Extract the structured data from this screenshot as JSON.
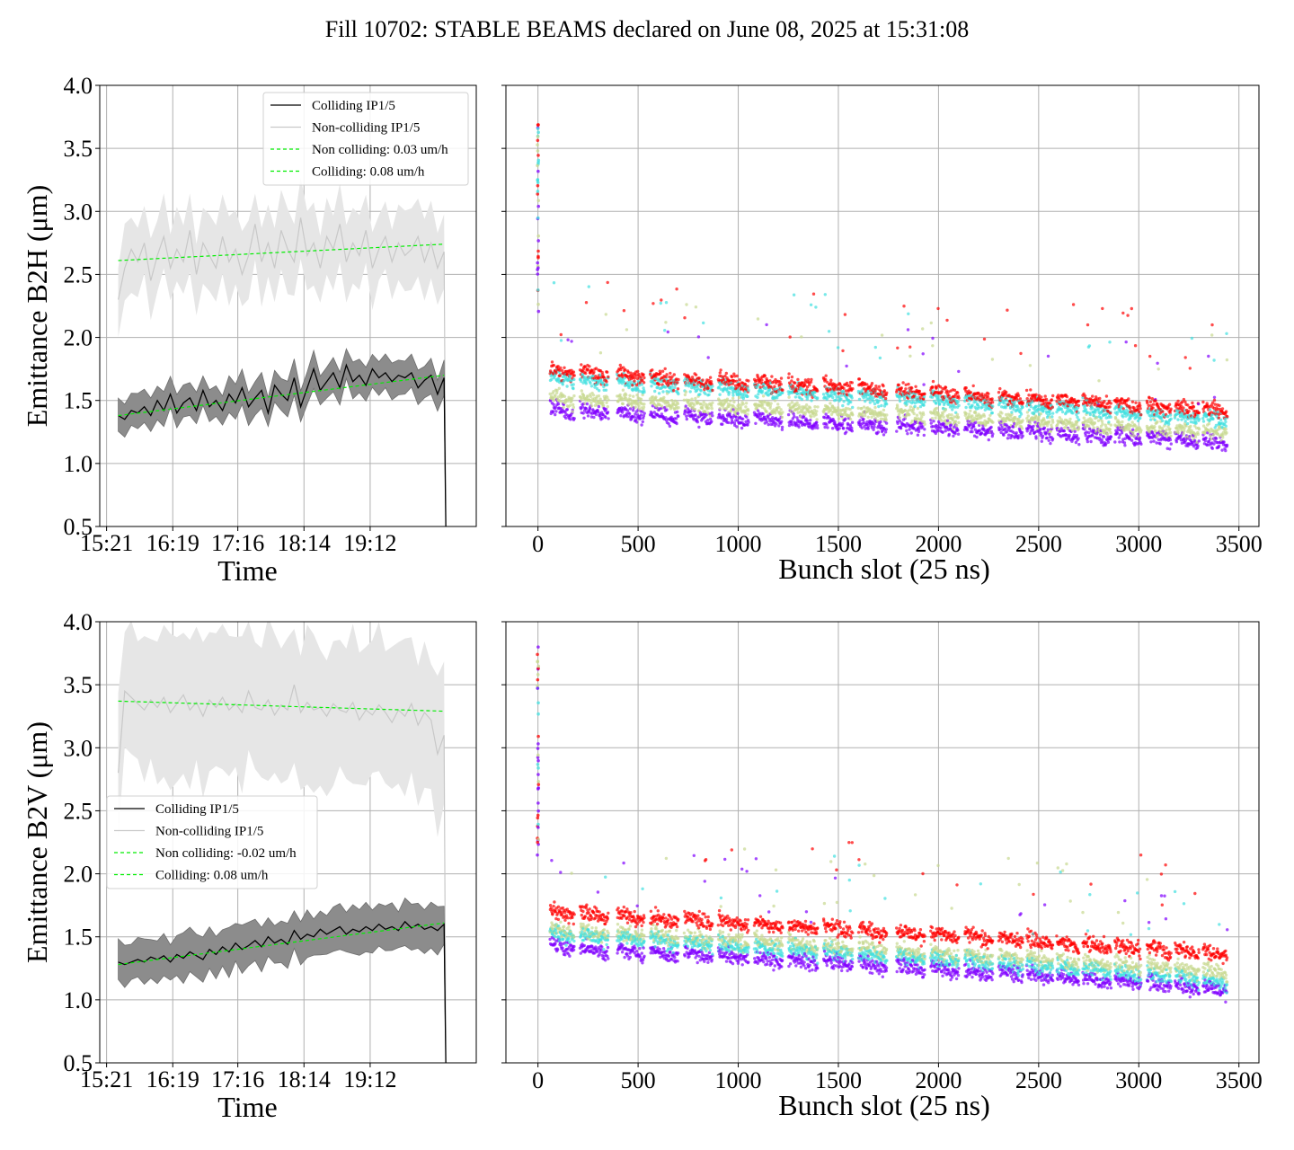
{
  "title": "Fill 10702: STABLE BEAMS declared on June 08, 2025 at 15:31:08",
  "colors": {
    "colliding": "#000000",
    "colliding_band": "#8c8c8c",
    "non_colliding": "#c8c8c8",
    "non_colliding_band": "#e6e6e6",
    "fit": "#00ee00",
    "grid": "#b0b0b0",
    "scatter_palette": [
      "#8000ff",
      "#c8d890",
      "#40e0e0",
      "#ff0000"
    ]
  },
  "chart_data": [
    {
      "id": "b2h_time",
      "type": "line",
      "xlabel": "Time",
      "ylabel": "Emittance B2H (μm)",
      "ylim": [
        0.5,
        4.0
      ],
      "yticks": [
        "0.5",
        "1.0",
        "1.5",
        "2.0",
        "2.5",
        "3.0",
        "3.5",
        "4.0"
      ],
      "xticks": [
        "15:21",
        "16:19",
        "17:16",
        "18:14",
        "19:12"
      ],
      "xlim_hours": [
        15.25,
        20.75
      ],
      "grid": true,
      "legend_position": "upper-right",
      "legend": [
        "Colliding IP1/5",
        "Non-colliding IP1/5",
        "Non colliding: 0.03 um/h",
        "Colliding: 0.08 um/h"
      ],
      "series": [
        {
          "name": "Colliding IP1/5",
          "t_start": 15.52,
          "t_end": 20.28,
          "mean": [
            1.38,
            1.35,
            1.42,
            1.4,
            1.45,
            1.38,
            1.5,
            1.42,
            1.55,
            1.4,
            1.48,
            1.52,
            1.42,
            1.58,
            1.45,
            1.5,
            1.42,
            1.55,
            1.48,
            1.6,
            1.45,
            1.52,
            1.58,
            1.4,
            1.62,
            1.55,
            1.5,
            1.68,
            1.45,
            1.6,
            1.75,
            1.58,
            1.65,
            1.72,
            1.6,
            1.78,
            1.65,
            1.7,
            1.62,
            1.75,
            1.68,
            1.72,
            1.65,
            1.7,
            1.68,
            1.72,
            1.6,
            1.66,
            1.7,
            1.55,
            1.68
          ],
          "band": 0.13
        },
        {
          "name": "Non-colliding IP1/5",
          "t_start": 15.52,
          "t_end": 20.28,
          "mean": [
            2.3,
            2.55,
            2.7,
            2.6,
            2.75,
            2.45,
            2.65,
            2.8,
            2.55,
            2.7,
            2.6,
            2.85,
            2.5,
            2.75,
            2.65,
            2.55,
            2.8,
            2.6,
            2.7,
            2.5,
            2.65,
            2.9,
            2.6,
            2.75,
            2.55,
            2.85,
            2.7,
            2.6,
            2.95,
            2.65,
            2.75,
            2.55,
            2.8,
            2.7,
            2.9,
            2.6,
            2.75,
            2.65,
            2.85,
            2.55,
            2.7,
            2.8,
            2.6,
            2.75,
            2.65,
            2.7,
            2.8,
            2.6,
            2.75,
            2.55,
            2.68
          ],
          "band": 0.3
        },
        {
          "name": "Non colliding: 0.03 um/h",
          "dashed": true,
          "t": [
            15.52,
            20.28
          ],
          "values": [
            2.61,
            2.74
          ]
        },
        {
          "name": "Colliding: 0.08 um/h",
          "dashed": true,
          "t": [
            15.52,
            20.28
          ],
          "values": [
            1.38,
            1.7
          ]
        }
      ]
    },
    {
      "id": "b2h_bunch",
      "type": "scatter",
      "xlabel": "Bunch slot (25 ns)",
      "ylabel": "",
      "xlim": [
        -160,
        3600
      ],
      "ylim": [
        0.5,
        4.0
      ],
      "xticks": [
        "0",
        "500",
        "1000",
        "1500",
        "2000",
        "2500",
        "3000",
        "3500"
      ],
      "grid": true,
      "bunch_trains": [
        [
          60,
          180
        ],
        [
          210,
          350
        ],
        [
          395,
          530
        ],
        [
          560,
          700
        ],
        [
          730,
          870
        ],
        [
          900,
          1050
        ],
        [
          1080,
          1220
        ],
        [
          1250,
          1395
        ],
        [
          1425,
          1570
        ],
        [
          1600,
          1740
        ],
        [
          1790,
          1930
        ],
        [
          1960,
          2100
        ],
        [
          2130,
          2270
        ],
        [
          2300,
          2420
        ],
        [
          2440,
          2570
        ],
        [
          2590,
          2700
        ],
        [
          2720,
          2860
        ],
        [
          2880,
          3010
        ],
        [
          3040,
          3160
        ],
        [
          3180,
          3300
        ],
        [
          3320,
          3440
        ]
      ],
      "levels": {
        "start": [
          1.45,
          1.55,
          1.7,
          1.75
        ],
        "end": [
          1.2,
          1.28,
          1.38,
          1.45
        ]
      },
      "spike": {
        "x": 0,
        "range": [
          2.2,
          3.7
        ]
      }
    },
    {
      "id": "b2v_time",
      "type": "line",
      "xlabel": "Time",
      "ylabel": "Emittance B2V (μm)",
      "ylim": [
        0.5,
        4.0
      ],
      "yticks": [
        "0.5",
        "1.0",
        "1.5",
        "2.0",
        "2.5",
        "3.0",
        "3.5",
        "4.0"
      ],
      "xticks": [
        "15:21",
        "16:19",
        "17:16",
        "18:14",
        "19:12"
      ],
      "xlim_hours": [
        15.25,
        20.75
      ],
      "grid": true,
      "legend_position": "center-left",
      "legend": [
        "Colliding IP1/5",
        "Non-colliding IP1/5",
        "Non colliding: -0.02 um/h",
        "Colliding: 0.08 um/h"
      ],
      "series": [
        {
          "name": "Colliding IP1/5",
          "t_start": 15.52,
          "t_end": 20.28,
          "mean": [
            1.3,
            1.28,
            1.3,
            1.32,
            1.3,
            1.34,
            1.32,
            1.35,
            1.3,
            1.36,
            1.33,
            1.38,
            1.35,
            1.32,
            1.4,
            1.36,
            1.42,
            1.38,
            1.45,
            1.4,
            1.43,
            1.47,
            1.42,
            1.5,
            1.45,
            1.48,
            1.44,
            1.55,
            1.48,
            1.52,
            1.5,
            1.56,
            1.52,
            1.55,
            1.58,
            1.52,
            1.56,
            1.54,
            1.58,
            1.55,
            1.6,
            1.56,
            1.58,
            1.55,
            1.62,
            1.57,
            1.6,
            1.56,
            1.58,
            1.55,
            1.6
          ],
          "band": 0.17
        },
        {
          "name": "Non-colliding IP1/5",
          "t_start": 15.52,
          "t_end": 20.28,
          "mean": [
            2.8,
            3.45,
            3.4,
            3.35,
            3.3,
            3.38,
            3.32,
            3.4,
            3.28,
            3.35,
            3.42,
            3.3,
            3.36,
            3.25,
            3.38,
            3.32,
            3.4,
            3.3,
            3.35,
            3.28,
            3.45,
            3.32,
            3.3,
            3.38,
            3.26,
            3.34,
            3.3,
            3.5,
            3.28,
            3.36,
            3.3,
            3.32,
            3.25,
            3.35,
            3.3,
            3.28,
            3.36,
            3.22,
            3.3,
            3.26,
            3.34,
            3.28,
            3.2,
            3.3,
            3.25,
            3.35,
            3.18,
            3.28,
            3.22,
            2.95,
            3.1
          ],
          "band": 0.55
        },
        {
          "name": "Non colliding: -0.02 um/h",
          "dashed": true,
          "t": [
            15.52,
            20.28
          ],
          "values": [
            3.37,
            3.29
          ]
        },
        {
          "name": "Colliding: 0.08 um/h",
          "dashed": true,
          "t": [
            15.52,
            20.28
          ],
          "values": [
            1.28,
            1.61
          ]
        }
      ]
    },
    {
      "id": "b2v_bunch",
      "type": "scatter",
      "xlabel": "Bunch slot (25 ns)",
      "ylabel": "",
      "xlim": [
        -160,
        3600
      ],
      "ylim": [
        0.5,
        4.0
      ],
      "xticks": [
        "0",
        "500",
        "1000",
        "1500",
        "2000",
        "2500",
        "3000",
        "3500"
      ],
      "grid": true,
      "bunch_trains": [
        [
          60,
          180
        ],
        [
          210,
          350
        ],
        [
          395,
          530
        ],
        [
          560,
          700
        ],
        [
          730,
          870
        ],
        [
          900,
          1050
        ],
        [
          1080,
          1220
        ],
        [
          1250,
          1395
        ],
        [
          1425,
          1570
        ],
        [
          1600,
          1740
        ],
        [
          1790,
          1930
        ],
        [
          1960,
          2100
        ],
        [
          2130,
          2270
        ],
        [
          2300,
          2420
        ],
        [
          2440,
          2570
        ],
        [
          2590,
          2700
        ],
        [
          2720,
          2860
        ],
        [
          2880,
          3010
        ],
        [
          3040,
          3160
        ],
        [
          3180,
          3300
        ],
        [
          3320,
          3440
        ]
      ],
      "levels": {
        "start": [
          1.45,
          1.58,
          1.55,
          1.72
        ],
        "end": [
          1.12,
          1.25,
          1.18,
          1.4
        ]
      },
      "spike": {
        "x": 0,
        "range": [
          2.1,
          3.8
        ]
      }
    }
  ]
}
